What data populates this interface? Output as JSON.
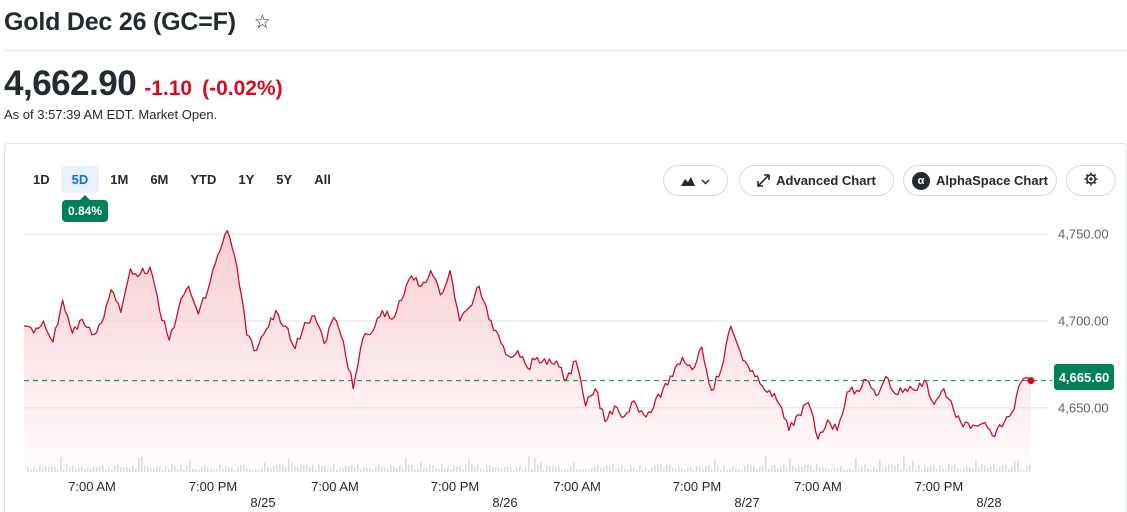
{
  "header": {
    "title": "Gold Dec 26 (GC=F)",
    "star_icon": "star-outline-icon"
  },
  "quote": {
    "price": "4,662.90",
    "change": "-1.10",
    "change_percent": "(-0.02%)",
    "as_of": "As of 3:57:39 AM EDT. Market Open."
  },
  "range_tabs": [
    "1D",
    "5D",
    "1M",
    "6M",
    "YTD",
    "1Y",
    "5Y",
    "All"
  ],
  "active_range": "5D",
  "range_change_badge": "0.84%",
  "toolbar": {
    "chart_type_icon": "mountain-chart-icon",
    "advanced_chart": "Advanced Chart",
    "alphaspace_chart": "AlphaSpace Chart",
    "settings_icon": "gear-icon"
  },
  "last_price_tag": "4,665.60",
  "colors": {
    "line": "#c8102e",
    "fill": "#f7c9ce",
    "badge_green": "#008059",
    "negative_red": "#d60a22",
    "active_tab_blue": "#0f69ff"
  },
  "chart_data": {
    "type": "area",
    "y_ticks": [
      "4,750.00",
      "4,700.00",
      "4,650.00"
    ],
    "ylim": [
      4613,
      4757
    ],
    "reference_line": 4665.6,
    "x_ticks": [
      {
        "time": "7:00 AM",
        "date": ""
      },
      {
        "time": "7:00 PM",
        "date": "8/25"
      },
      {
        "time": "7:00 AM",
        "date": ""
      },
      {
        "time": "7:00 PM",
        "date": "8/26"
      },
      {
        "time": "7:00 AM",
        "date": ""
      },
      {
        "time": "7:00 PM",
        "date": "8/27"
      },
      {
        "time": "7:00 AM",
        "date": ""
      },
      {
        "time": "7:00 PM",
        "date": "8/28"
      }
    ],
    "series": [
      {
        "values": [
          4697,
          4693,
          4700,
          4688,
          4712,
          4693,
          4701,
          4692,
          4699,
          4718,
          4705,
          4730,
          4727,
          4731,
          4706,
          4689,
          4708,
          4720,
          4704,
          4718,
          4738,
          4752,
          4731,
          4692,
          4683,
          4695,
          4706,
          4697,
          4684,
          4699,
          4703,
          4687,
          4702,
          4688,
          4661,
          4690,
          4694,
          4706,
          4701,
          4712,
          4726,
          4720,
          4729,
          4715,
          4729,
          4700,
          4708,
          4720,
          4701,
          4692,
          4680,
          4683,
          4673,
          4679,
          4675,
          4677,
          4666,
          4677,
          4651,
          4661,
          4642,
          4651,
          4645,
          4654,
          4646,
          4650,
          4661,
          4668,
          4679,
          4672,
          4685,
          4660,
          4672,
          4697,
          4682,
          4671,
          4664,
          4660,
          4652,
          4637,
          4646,
          4653,
          4632,
          4643,
          4637,
          4659,
          4660,
          4666,
          4657,
          4668,
          4658,
          4661,
          4660,
          4666,
          4652,
          4661,
          4649,
          4639,
          4640,
          4641,
          4634,
          4639,
          4647,
          4665,
          4665.6
        ]
      }
    ]
  }
}
